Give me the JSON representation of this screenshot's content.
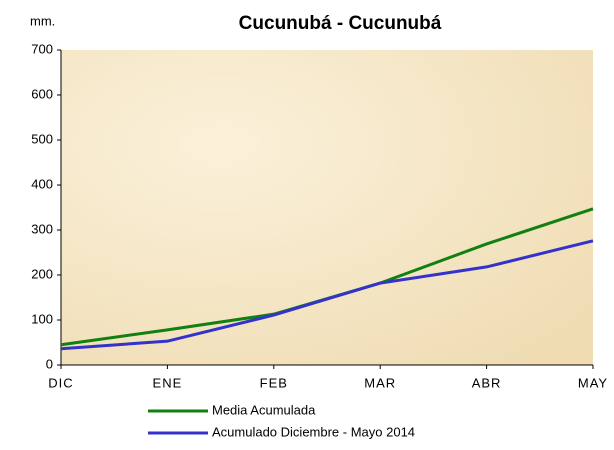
{
  "chart_data": {
    "type": "line",
    "title": "Cucunubá - Cucunubá",
    "y_label": "mm.",
    "categories": [
      "DIC",
      "ENE",
      "FEB",
      "MAR",
      "ABR",
      "MAY"
    ],
    "series": [
      {
        "name": "Media Acumulada",
        "color": "#118011",
        "values": [
          45,
          78,
          113,
          182,
          269,
          347
        ]
      },
      {
        "name": "Acumulado  Diciembre - Mayo  2014",
        "color": "#3333cc",
        "values": [
          36,
          53,
          111,
          182,
          218,
          276
        ]
      }
    ],
    "ylim": [
      0,
      700
    ],
    "yticks": [
      0,
      100,
      200,
      300,
      400,
      500,
      600,
      700
    ]
  }
}
